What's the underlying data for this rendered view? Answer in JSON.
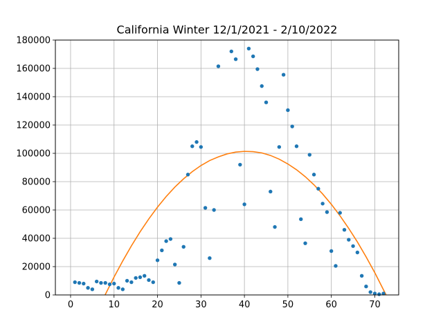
{
  "chart_data": {
    "type": "scatter",
    "title": "California Winter 12/1/2021 - 2/10/2022",
    "xlabel": "",
    "ylabel": "",
    "xlim": [
      -3.5,
      75.5
    ],
    "ylim": [
      0,
      180000
    ],
    "xticks": [
      0,
      10,
      20,
      30,
      40,
      50,
      60,
      70
    ],
    "yticks": [
      0,
      20000,
      40000,
      60000,
      80000,
      100000,
      120000,
      140000,
      160000,
      180000
    ],
    "grid": true,
    "legend": "none",
    "series": [
      {
        "kind": "scatter",
        "color": "#1f77b4",
        "points": [
          [
            1,
            9000
          ],
          [
            2,
            8500
          ],
          [
            3,
            8000
          ],
          [
            4,
            5000
          ],
          [
            5,
            4000
          ],
          [
            6,
            9500
          ],
          [
            7,
            8500
          ],
          [
            8,
            8500
          ],
          [
            9,
            7500
          ],
          [
            10,
            8000
          ],
          [
            11,
            5000
          ],
          [
            12,
            4000
          ],
          [
            13,
            10000
          ],
          [
            14,
            9000
          ],
          [
            15,
            12000
          ],
          [
            16,
            12500
          ],
          [
            17,
            13500
          ],
          [
            18,
            10500
          ],
          [
            19,
            9000
          ],
          [
            20,
            24500
          ],
          [
            21,
            31500
          ],
          [
            22,
            38000
          ],
          [
            23,
            39500
          ],
          [
            24,
            21500
          ],
          [
            25,
            8500
          ],
          [
            26,
            34000
          ],
          [
            27,
            85000
          ],
          [
            28,
            105000
          ],
          [
            29,
            108000
          ],
          [
            30,
            104500
          ],
          [
            31,
            61500
          ],
          [
            32,
            26000
          ],
          [
            33,
            60000
          ],
          [
            34,
            161500
          ],
          [
            37,
            172000
          ],
          [
            38,
            166500
          ],
          [
            39,
            92000
          ],
          [
            40,
            64000
          ],
          [
            41,
            174000
          ],
          [
            42,
            168500
          ],
          [
            43,
            159500
          ],
          [
            44,
            147500
          ],
          [
            45,
            136000
          ],
          [
            46,
            73000
          ],
          [
            47,
            48000
          ],
          [
            48,
            104500
          ],
          [
            49,
            155500
          ],
          [
            50,
            130500
          ],
          [
            51,
            119000
          ],
          [
            52,
            105000
          ],
          [
            53,
            53500
          ],
          [
            54,
            36500
          ],
          [
            55,
            99000
          ],
          [
            56,
            85000
          ],
          [
            57,
            75000
          ],
          [
            58,
            64500
          ],
          [
            59,
            58500
          ],
          [
            60,
            31000
          ],
          [
            61,
            20500
          ],
          [
            62,
            58000
          ],
          [
            63,
            46000
          ],
          [
            64,
            39000
          ],
          [
            65,
            34500
          ],
          [
            66,
            30000
          ],
          [
            67,
            13500
          ],
          [
            68,
            6000
          ],
          [
            69,
            2000
          ],
          [
            70,
            1000
          ],
          [
            71,
            500
          ],
          [
            72,
            1000
          ]
        ]
      },
      {
        "kind": "line",
        "color": "#ff7f0e",
        "points": [
          [
            7.94,
            0
          ],
          [
            10,
            12600
          ],
          [
            12,
            24000
          ],
          [
            14,
            34700
          ],
          [
            16,
            44600
          ],
          [
            18,
            53700
          ],
          [
            20,
            62000
          ],
          [
            22,
            69500
          ],
          [
            24,
            76200
          ],
          [
            26,
            82000
          ],
          [
            28,
            87100
          ],
          [
            30,
            91400
          ],
          [
            32,
            94900
          ],
          [
            34,
            97500
          ],
          [
            36,
            99600
          ],
          [
            38,
            100900
          ],
          [
            40,
            101400
          ],
          [
            42,
            101200
          ],
          [
            44,
            100300
          ],
          [
            46,
            98500
          ],
          [
            48,
            95900
          ],
          [
            50,
            92500
          ],
          [
            52,
            88400
          ],
          [
            54,
            83500
          ],
          [
            56,
            77800
          ],
          [
            58,
            71300
          ],
          [
            60,
            64000
          ],
          [
            62,
            55900
          ],
          [
            64,
            47000
          ],
          [
            66,
            37400
          ],
          [
            68,
            26900
          ],
          [
            70,
            15700
          ],
          [
            72,
            3600
          ],
          [
            72.6,
            0
          ]
        ]
      }
    ]
  }
}
